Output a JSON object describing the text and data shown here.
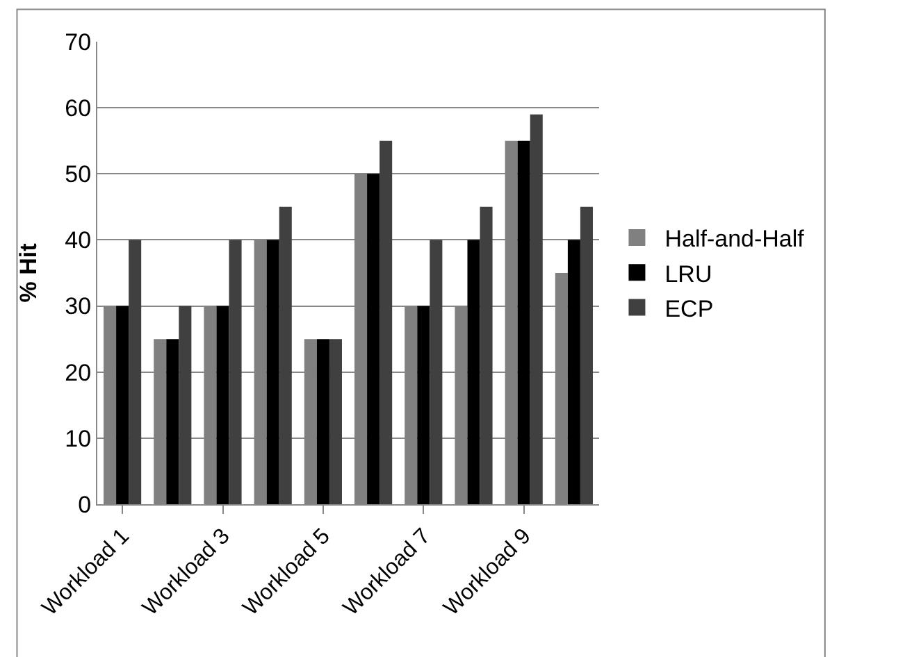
{
  "chart_data": {
    "type": "bar",
    "ylabel": "% Hit",
    "categories": [
      "Workload 1",
      null,
      "Workload 3",
      null,
      "Workload 5",
      null,
      "Workload 7",
      null,
      "Workload 9",
      null
    ],
    "series": [
      {
        "name": "Half-and-Half",
        "color": "#808080",
        "values": [
          30,
          25,
          30,
          40,
          25,
          50,
          30,
          30,
          55,
          35
        ]
      },
      {
        "name": "LRU",
        "color": "#000000",
        "values": [
          30,
          25,
          30,
          40,
          25,
          50,
          30,
          40,
          55,
          40
        ]
      },
      {
        "name": "ECP",
        "color": "#404040",
        "values": [
          40,
          30,
          40,
          45,
          25,
          55,
          40,
          45,
          59,
          45
        ]
      }
    ],
    "ylim": [
      0,
      70
    ],
    "yticks": [
      0,
      10,
      20,
      30,
      40,
      50,
      60,
      70
    ],
    "grid": "y",
    "legend": "right"
  }
}
